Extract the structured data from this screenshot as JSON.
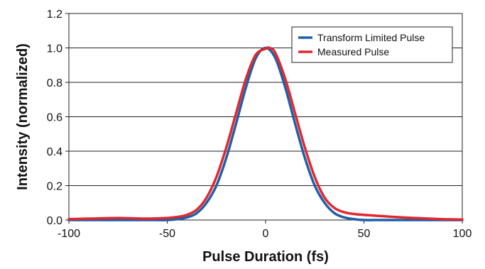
{
  "chart_data": {
    "type": "line",
    "xlabel": "Pulse Duration (fs)",
    "ylabel": "Intensity (normalized)",
    "xlim": [
      -100,
      100
    ],
    "ylim": [
      0,
      1.2
    ],
    "x_ticks": [
      -100,
      -50,
      0,
      50,
      100
    ],
    "y_ticks": [
      "0.0",
      "0.2",
      "0.4",
      "0.6",
      "0.8",
      "1.0",
      "1.2"
    ],
    "grid": "horizontal",
    "legend_position": "top-right",
    "series": [
      {
        "name": "Transform Limited Pulse",
        "color": "#1f5fa8",
        "x": [
          -100,
          -80,
          -60,
          -50,
          -45,
          -40,
          -35,
          -30,
          -25,
          -20,
          -15,
          -10,
          -5,
          0,
          5,
          10,
          15,
          20,
          25,
          30,
          35,
          40,
          45,
          50,
          60,
          80,
          100
        ],
        "y": [
          0.0,
          0.0,
          0.0,
          0.0,
          0.005,
          0.015,
          0.04,
          0.1,
          0.2,
          0.36,
          0.56,
          0.77,
          0.94,
          1.0,
          0.94,
          0.77,
          0.56,
          0.36,
          0.2,
          0.1,
          0.04,
          0.015,
          0.005,
          0.0,
          0.0,
          0.0,
          0.0
        ]
      },
      {
        "name": "Measured Pulse",
        "color": "#e0282e",
        "x": [
          -100,
          -90,
          -75,
          -60,
          -50,
          -45,
          -40,
          -35,
          -30,
          -25,
          -20,
          -15,
          -10,
          -5,
          0,
          2,
          5,
          10,
          15,
          20,
          25,
          30,
          35,
          40,
          45,
          50,
          60,
          70,
          80,
          90,
          100
        ],
        "y": [
          0.005,
          0.008,
          0.012,
          0.008,
          0.012,
          0.018,
          0.03,
          0.06,
          0.13,
          0.25,
          0.42,
          0.62,
          0.82,
          0.96,
          0.995,
          1.0,
          0.97,
          0.82,
          0.62,
          0.42,
          0.25,
          0.13,
          0.07,
          0.045,
          0.035,
          0.03,
          0.022,
          0.015,
          0.01,
          0.005,
          0.003
        ]
      }
    ]
  }
}
